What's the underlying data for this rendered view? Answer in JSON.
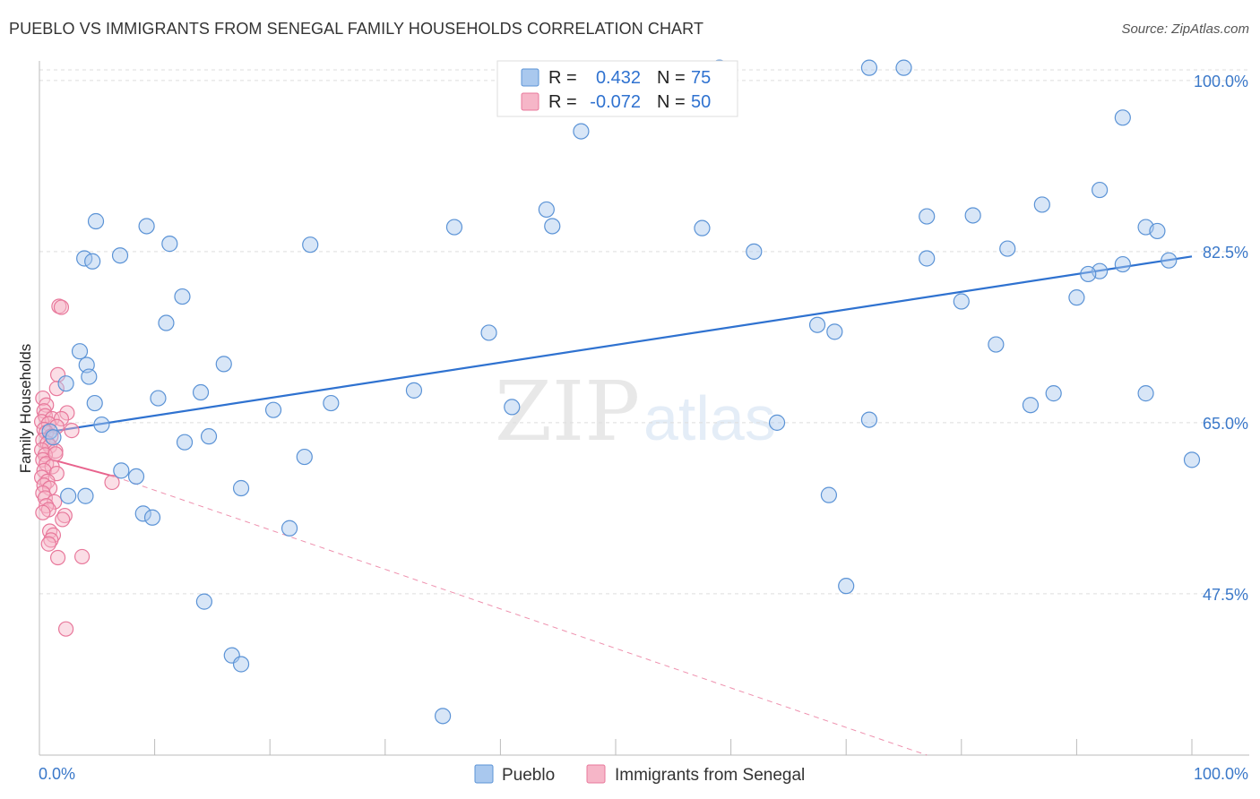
{
  "title": "PUEBLO VS IMMIGRANTS FROM SENEGAL FAMILY HOUSEHOLDS CORRELATION CHART",
  "source": "Source: ZipAtlas.com",
  "watermark": {
    "zip": "ZIP",
    "atlas": "atlas"
  },
  "legend_top": [
    {
      "r_label": "R =",
      "r_value": "0.432",
      "n_label": "N =",
      "n_value": "75"
    },
    {
      "r_label": "R =",
      "r_value": "-0.072",
      "n_label": "N =",
      "n_value": "50"
    }
  ],
  "legend_bottom": [
    "Pueblo",
    "Immigrants from Senegal"
  ],
  "colors": {
    "pueblo_fill": "#a9c8ee",
    "pueblo_stroke": "#5b93d6",
    "pueblo_line": "#2f72d0",
    "senegal_fill": "#f6b6c8",
    "senegal_stroke": "#e8789b",
    "senegal_line": "#e8638d",
    "grid": "#dddddd",
    "tick_text": "#3a78c9"
  },
  "chart_data": {
    "type": "scatter",
    "title": "PUEBLO VS IMMIGRANTS FROM SENEGAL FAMILY HOUSEHOLDS CORRELATION CHART",
    "xlabel": "",
    "ylabel": "Family Households",
    "xlim": [
      0,
      100
    ],
    "ylim": [
      31,
      102
    ],
    "x_tick_labels": [
      "0.0%",
      "100.0%"
    ],
    "y_ticks": [
      47.5,
      65.0,
      82.5,
      100.0
    ],
    "y_tick_labels": [
      "47.5%",
      "65.0%",
      "82.5%",
      "100.0%"
    ],
    "grid": true,
    "series": [
      {
        "name": "Pueblo",
        "R": 0.432,
        "N": 75,
        "trend": {
          "x0": 0.5,
          "y0": 64.0,
          "x1": 100,
          "y1": 82.0,
          "style": "solid"
        },
        "points": [
          [
            59,
            101.3
          ],
          [
            72,
            101.3
          ],
          [
            75,
            101.3
          ],
          [
            94,
            96.2
          ],
          [
            47,
            94.8
          ],
          [
            92,
            88.8
          ],
          [
            87,
            87.3
          ],
          [
            44,
            86.8
          ],
          [
            81,
            86.2
          ],
          [
            77,
            86.1
          ],
          [
            4.9,
            85.6
          ],
          [
            9.3,
            85.1
          ],
          [
            36,
            85.0
          ],
          [
            44.5,
            85.1
          ],
          [
            57.5,
            84.9
          ],
          [
            96,
            85.0
          ],
          [
            97,
            84.6
          ],
          [
            11.3,
            83.3
          ],
          [
            23.5,
            83.2
          ],
          [
            84,
            82.8
          ],
          [
            7,
            82.1
          ],
          [
            62,
            82.5
          ],
          [
            77,
            81.8
          ],
          [
            3.9,
            81.8
          ],
          [
            4.6,
            81.5
          ],
          [
            94,
            81.2
          ],
          [
            98,
            81.6
          ],
          [
            92,
            80.5
          ],
          [
            91,
            80.2
          ],
          [
            12.4,
            77.9
          ],
          [
            90,
            77.8
          ],
          [
            80,
            77.4
          ],
          [
            11,
            75.2
          ],
          [
            67.5,
            75.0
          ],
          [
            69,
            74.3
          ],
          [
            39,
            74.2
          ],
          [
            83,
            73.0
          ],
          [
            3.5,
            72.3
          ],
          [
            4.1,
            70.9
          ],
          [
            16,
            71.0
          ],
          [
            4.3,
            69.7
          ],
          [
            2.3,
            69.0
          ],
          [
            32.5,
            68.3
          ],
          [
            14,
            68.1
          ],
          [
            88,
            68.0
          ],
          [
            96,
            68.0
          ],
          [
            10.3,
            67.5
          ],
          [
            4.8,
            67.0
          ],
          [
            25.3,
            67.0
          ],
          [
            41,
            66.6
          ],
          [
            86,
            66.8
          ],
          [
            20.3,
            66.3
          ],
          [
            72,
            65.3
          ],
          [
            64,
            65.0
          ],
          [
            5.4,
            64.8
          ],
          [
            0.9,
            64.1
          ],
          [
            1.2,
            63.5
          ],
          [
            14.7,
            63.6
          ],
          [
            12.6,
            63.0
          ],
          [
            23,
            61.5
          ],
          [
            100,
            61.2
          ],
          [
            7.1,
            60.1
          ],
          [
            8.4,
            59.5
          ],
          [
            17.5,
            58.3
          ],
          [
            4.0,
            57.5
          ],
          [
            68.5,
            57.6
          ],
          [
            2.5,
            57.5
          ],
          [
            9,
            55.7
          ],
          [
            9.8,
            55.3
          ],
          [
            21.7,
            54.2
          ],
          [
            70,
            48.3
          ],
          [
            14.3,
            46.7
          ],
          [
            16.7,
            41.2
          ],
          [
            17.5,
            40.3
          ],
          [
            35,
            35.0
          ]
        ]
      },
      {
        "name": "Immigrants from Senegal",
        "R": -0.072,
        "N": 50,
        "trend": {
          "x0": 0.2,
          "y0": 61.5,
          "x1": 6.5,
          "y1": 59.5,
          "style": "solid",
          "extended_to": [
            77,
            31
          ],
          "extended_style": "dashed"
        },
        "points": [
          [
            1.7,
            76.9
          ],
          [
            1.9,
            76.8
          ],
          [
            1.6,
            69.9
          ],
          [
            1.5,
            68.5
          ],
          [
            0.3,
            67.5
          ],
          [
            0.6,
            66.8
          ],
          [
            0.4,
            66.2
          ],
          [
            2.4,
            66.0
          ],
          [
            0.5,
            65.7
          ],
          [
            1.1,
            65.4
          ],
          [
            1.9,
            65.4
          ],
          [
            0.2,
            65.1
          ],
          [
            0.8,
            64.9
          ],
          [
            1.5,
            64.6
          ],
          [
            0.4,
            64.3
          ],
          [
            2.8,
            64.2
          ],
          [
            0.6,
            64.0
          ],
          [
            1.0,
            63.6
          ],
          [
            0.3,
            63.2
          ],
          [
            0.7,
            62.9
          ],
          [
            0.9,
            62.6
          ],
          [
            0.2,
            62.2
          ],
          [
            1.4,
            62.1
          ],
          [
            0.5,
            61.7
          ],
          [
            0.3,
            61.2
          ],
          [
            0.6,
            60.8
          ],
          [
            1.1,
            60.5
          ],
          [
            0.4,
            60.1
          ],
          [
            1.5,
            59.8
          ],
          [
            0.2,
            59.4
          ],
          [
            0.7,
            59.0
          ],
          [
            0.4,
            58.6
          ],
          [
            6.3,
            58.9
          ],
          [
            0.9,
            58.3
          ],
          [
            0.3,
            57.8
          ],
          [
            0.5,
            57.3
          ],
          [
            1.3,
            56.9
          ],
          [
            0.6,
            56.5
          ],
          [
            0.8,
            56.1
          ],
          [
            0.3,
            55.8
          ],
          [
            2.2,
            55.5
          ],
          [
            2.0,
            55.1
          ],
          [
            0.9,
            53.9
          ],
          [
            1.2,
            53.5
          ],
          [
            1.0,
            53.0
          ],
          [
            0.8,
            52.6
          ],
          [
            1.6,
            51.2
          ],
          [
            3.7,
            51.3
          ],
          [
            2.3,
            43.9
          ],
          [
            1.4,
            61.8
          ]
        ]
      }
    ]
  }
}
